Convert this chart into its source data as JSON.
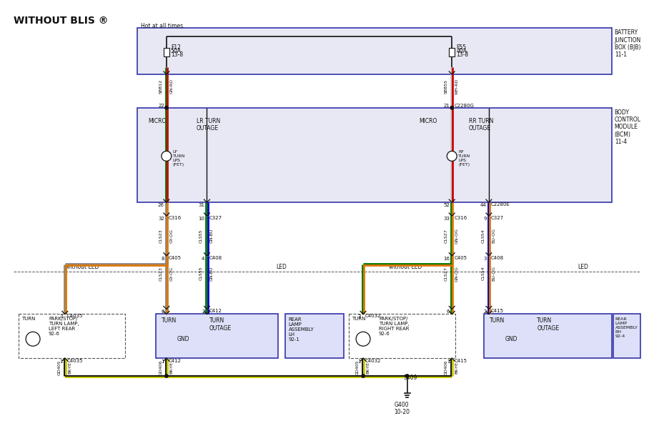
{
  "title": "WITHOUT BLIS ®",
  "bg_color": "#ffffff",
  "hot_at_all_times": "Hot at all times",
  "bjb_label": "BATTERY\nJUNCTION\nBOX (BJB)\n11-1",
  "bcm_label": "BODY\nCONTROL\nMODULE\n(BCM)\n11-4",
  "fuse_left": {
    "name": "F12",
    "amp": "50A",
    "ref": "13-8"
  },
  "fuse_right": {
    "name": "F55",
    "amp": "40A",
    "ref": "13-8"
  },
  "wire_gn_rd": [
    "#007700",
    "#cc0000"
  ],
  "wire_wh_rd": [
    "#cccccc",
    "#cc0000"
  ],
  "wire_gy_og": [
    "#888888",
    "#dd7700"
  ],
  "wire_gn_bu": [
    "#007700",
    "#0000cc"
  ],
  "wire_gn_og": [
    "#007700",
    "#dd7700"
  ],
  "wire_bu_og": [
    "#0000cc",
    "#dd7700"
  ],
  "wire_bk_ye": [
    "#111111",
    "#cccc00"
  ],
  "wire_blk": "#111111",
  "wire_lw": 2.0,
  "connector_color": "#111111"
}
